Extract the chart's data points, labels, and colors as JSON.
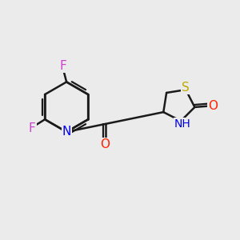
{
  "bg_color": "#ebebeb",
  "bond_color": "#1a1a1a",
  "bond_width": 1.8,
  "atom_colors": {
    "F": "#cc44cc",
    "N": "#0000ee",
    "O": "#ff2200",
    "S": "#bbaa00",
    "NH": "#0000ee"
  },
  "figsize": [
    3.0,
    3.0
  ],
  "dpi": 100
}
